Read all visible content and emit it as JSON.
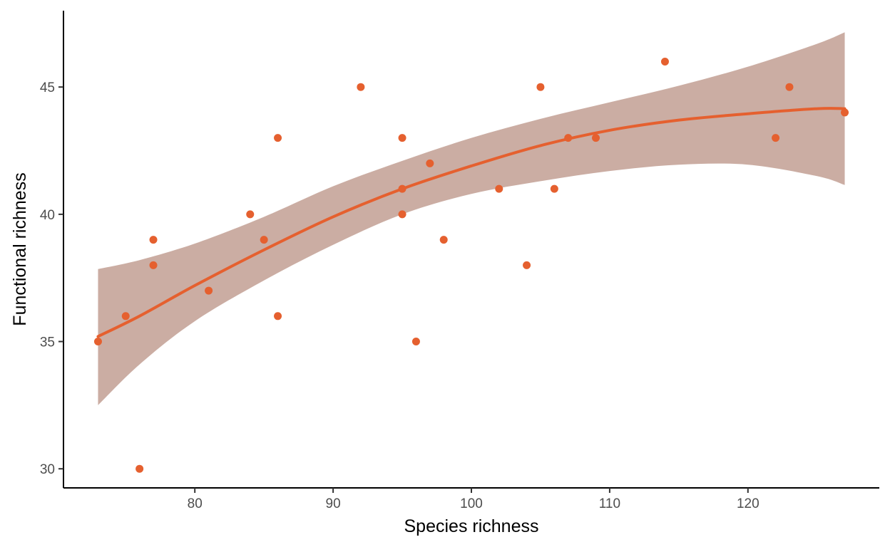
{
  "colors": {
    "point": "#E5602F",
    "fit_line": "#E5602F",
    "ribbon": "#8B4A33",
    "ribbon_opacity": 0.45,
    "axis": "#000000",
    "tick_text": "#4d4d4d"
  },
  "chart_data": {
    "type": "scatter",
    "title": "",
    "xlabel": "Species richness",
    "ylabel": "Functional richness",
    "xlim": [
      70.5,
      129.5
    ],
    "ylim": [
      29.25,
      48
    ],
    "x_ticks": [
      80,
      90,
      100,
      110,
      120
    ],
    "y_ticks": [
      30,
      35,
      40,
      45
    ],
    "x_tick_labels": [
      "80",
      "90",
      "100",
      "110",
      "120"
    ],
    "y_tick_labels": [
      "30",
      "35",
      "40",
      "45"
    ],
    "grid": false,
    "legend": "none",
    "points": [
      {
        "x": 73,
        "y": 35
      },
      {
        "x": 75,
        "y": 36
      },
      {
        "x": 76,
        "y": 30
      },
      {
        "x": 77,
        "y": 39
      },
      {
        "x": 77,
        "y": 38
      },
      {
        "x": 81,
        "y": 37
      },
      {
        "x": 84,
        "y": 40
      },
      {
        "x": 85,
        "y": 39
      },
      {
        "x": 86,
        "y": 43
      },
      {
        "x": 86,
        "y": 36
      },
      {
        "x": 92,
        "y": 45
      },
      {
        "x": 95,
        "y": 43
      },
      {
        "x": 95,
        "y": 41
      },
      {
        "x": 95,
        "y": 40
      },
      {
        "x": 96,
        "y": 35
      },
      {
        "x": 97,
        "y": 42
      },
      {
        "x": 98,
        "y": 39
      },
      {
        "x": 102,
        "y": 41
      },
      {
        "x": 104,
        "y": 38
      },
      {
        "x": 105,
        "y": 45
      },
      {
        "x": 106,
        "y": 41
      },
      {
        "x": 107,
        "y": 43
      },
      {
        "x": 109,
        "y": 43
      },
      {
        "x": 114,
        "y": 46
      },
      {
        "x": 122,
        "y": 43
      },
      {
        "x": 123,
        "y": 45
      },
      {
        "x": 127,
        "y": 44
      }
    ],
    "smooth": {
      "x": [
        73,
        76,
        80,
        85,
        90,
        95,
        100,
        105,
        110,
        115,
        120,
        125,
        127
      ],
      "fit": [
        35.2,
        36.0,
        37.2,
        38.6,
        39.9,
        41.0,
        41.9,
        42.7,
        43.3,
        43.7,
        43.95,
        44.15,
        44.15
      ],
      "lower": [
        32.5,
        34.1,
        35.8,
        37.4,
        38.8,
        40.0,
        40.8,
        41.3,
        41.7,
        41.95,
        41.95,
        41.5,
        41.15
      ],
      "upper": [
        37.85,
        38.2,
        38.85,
        39.9,
        41.1,
        42.1,
        43.0,
        43.75,
        44.4,
        45.05,
        45.8,
        46.7,
        47.15
      ]
    }
  }
}
